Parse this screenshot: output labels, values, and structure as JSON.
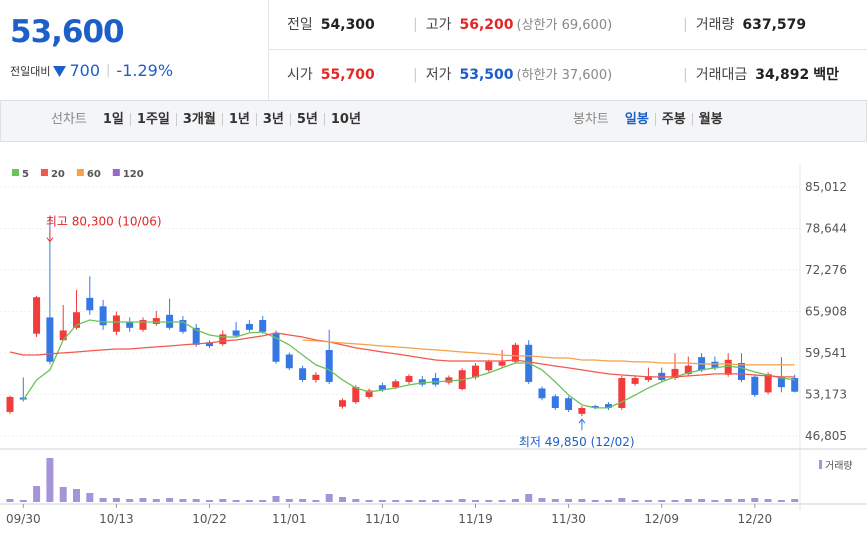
{
  "header": {
    "price": "53,600",
    "change_label": "전일대비",
    "change": "700",
    "change_rate": "-1.29%",
    "stats": [
      {
        "label": "전일",
        "value": "54,300"
      },
      {
        "label": "고가",
        "value": "56,200",
        "note": "(상한가 69,600)"
      },
      {
        "label": "거래량",
        "value": "637,579"
      },
      {
        "label": "시가",
        "value": "55,700"
      },
      {
        "label": "저가",
        "value": "53,500",
        "note": "(하한가 37,600)"
      },
      {
        "label": "거래대금",
        "value": "34,892",
        "unit": "백만"
      }
    ]
  },
  "tabs": {
    "line_label": "선차트",
    "periods": [
      "1일",
      "1주일",
      "3개월",
      "1년",
      "3년",
      "5년",
      "10년"
    ],
    "candle_label": "봉차트",
    "candle_periods": [
      "일봉",
      "주봉",
      "월봉"
    ]
  },
  "chart_data": {
    "type": "candlestick",
    "categories": [
      null,
      "09/30",
      null,
      null,
      null,
      null,
      null,
      null,
      "10/13",
      null,
      null,
      null,
      null,
      null,
      null,
      "10/22",
      null,
      null,
      null,
      null,
      null,
      "11/01",
      null,
      null,
      null,
      null,
      null,
      null,
      "11/10",
      null,
      null,
      null,
      null,
      null,
      null,
      "11/19",
      null,
      null,
      null,
      null,
      null,
      null,
      "11/30",
      null,
      null,
      null,
      null,
      null,
      null,
      "12/09",
      null,
      null,
      null,
      null,
      null,
      null,
      "12/20",
      null,
      null,
      null
    ],
    "open": [
      50500,
      52700,
      62500,
      65000,
      61500,
      63400,
      68000,
      66700,
      62800,
      64300,
      63100,
      64000,
      65400,
      64600,
      63400,
      61200,
      60900,
      63000,
      64000,
      64600,
      62600,
      59300,
      57200,
      55400,
      60000,
      51300,
      52000,
      52800,
      54600,
      54300,
      55100,
      55500,
      55700,
      55000,
      54000,
      55800,
      56900,
      57600,
      58200,
      60800,
      54100,
      52900,
      52600,
      50200,
      51400,
      51700,
      51100,
      54800,
      55400,
      56500,
      55700,
      56300,
      58900,
      58200,
      56200,
      58000,
      55900,
      53500,
      55900,
      55700
    ],
    "high": [
      53000,
      55800,
      68300,
      80300,
      66900,
      69200,
      71300,
      67700,
      65900,
      65000,
      65000,
      66000,
      67900,
      65200,
      64000,
      61500,
      63000,
      64300,
      64600,
      65200,
      63000,
      59600,
      57600,
      56600,
      63100,
      52600,
      54600,
      54100,
      55000,
      55500,
      56300,
      56000,
      56500,
      56100,
      57200,
      58000,
      58500,
      60000,
      61100,
      61500,
      54400,
      53200,
      52900,
      51400,
      51600,
      52000,
      56000,
      56100,
      57300,
      57300,
      59500,
      59000,
      59500,
      59000,
      59500,
      59500,
      56200,
      56600,
      58900,
      56200
    ],
    "low": [
      50200,
      52100,
      62000,
      57800,
      61500,
      63100,
      65400,
      63100,
      62300,
      62800,
      62800,
      63700,
      63100,
      62500,
      60500,
      60300,
      60600,
      61900,
      62800,
      62500,
      57900,
      56900,
      55100,
      55000,
      54800,
      51000,
      51700,
      52500,
      53600,
      54000,
      54800,
      54400,
      54400,
      54700,
      53800,
      55500,
      56600,
      57300,
      57900,
      54800,
      52300,
      50800,
      50500,
      49850,
      50900,
      50800,
      50800,
      54500,
      55100,
      55100,
      55400,
      56000,
      56600,
      56900,
      55900,
      55100,
      52800,
      53200,
      53500,
      53500
    ],
    "close": [
      52800,
      52400,
      68100,
      58200,
      63000,
      65800,
      66100,
      63800,
      65300,
      63400,
      64600,
      64900,
      63400,
      62800,
      60800,
      60600,
      62400,
      62200,
      63100,
      62800,
      58200,
      57200,
      55400,
      56200,
      55100,
      52300,
      54300,
      53800,
      53900,
      55200,
      56000,
      54700,
      54700,
      55800,
      56900,
      57600,
      58200,
      58200,
      60800,
      55100,
      52600,
      51100,
      50800,
      51100,
      51100,
      51100,
      55700,
      55700,
      56000,
      55400,
      57100,
      57600,
      56900,
      57200,
      58500,
      55400,
      53100,
      56300,
      54300,
      53600
    ],
    "up_color": "#f23b3b",
    "down_color": "#3578e5",
    "series": [
      {
        "name": "5",
        "color": "#6cc25a",
        "values": [
          null,
          52340,
          55410,
          56940,
          61540,
          63840,
          64610,
          64300,
          64300,
          64300,
          64300,
          64300,
          64300,
          64300,
          63080,
          62310,
          62000,
          62000,
          62620,
          62770,
          61850,
          60780,
          59240,
          57710,
          56940,
          55410,
          54180,
          53560,
          53870,
          54180,
          54640,
          54950,
          55100,
          55250,
          55410,
          55870,
          56480,
          57250,
          58010,
          58010,
          56940,
          55100,
          53100,
          51570,
          51110,
          51110,
          52030,
          53100,
          54180,
          55100,
          55870,
          56480,
          56940,
          57250,
          57550,
          57250,
          56630,
          56170,
          55710,
          55410
        ]
      },
      {
        "name": "20",
        "color": "#f2584e",
        "values": [
          59700,
          59240,
          59240,
          59400,
          59550,
          59700,
          59860,
          60010,
          60160,
          60160,
          60320,
          60470,
          60620,
          60780,
          60930,
          61080,
          61390,
          61540,
          61850,
          62160,
          62620,
          62310,
          62000,
          61540,
          61240,
          60780,
          60320,
          60010,
          59700,
          59400,
          59090,
          58780,
          58470,
          58320,
          58320,
          58320,
          58320,
          58320,
          58470,
          58170,
          57860,
          57550,
          57250,
          56940,
          56630,
          56330,
          56170,
          56020,
          55870,
          55870,
          55870,
          56020,
          56170,
          56330,
          56330,
          56330,
          56170,
          56020,
          55870,
          55870
        ]
      },
      {
        "name": "60",
        "color": "#f5a145",
        "values": [
          null,
          null,
          null,
          null,
          null,
          null,
          null,
          null,
          null,
          null,
          null,
          null,
          null,
          null,
          null,
          null,
          null,
          null,
          null,
          null,
          null,
          null,
          61540,
          61390,
          61240,
          61080,
          60930,
          60780,
          60620,
          60470,
          60320,
          60160,
          60010,
          59860,
          59700,
          59550,
          59400,
          59240,
          59090,
          59090,
          58930,
          58780,
          58780,
          58470,
          58470,
          58320,
          58320,
          58170,
          58170,
          58010,
          58010,
          58010,
          57860,
          57860,
          57860,
          57710,
          57710,
          57710,
          57710,
          57710
        ]
      },
      {
        "name": "120",
        "color": "#9966cc",
        "values": [
          null,
          null,
          null,
          null,
          null,
          null,
          null,
          null,
          null,
          null,
          null,
          null,
          null,
          null,
          null,
          null,
          null,
          null,
          null,
          null,
          null,
          null,
          null,
          null,
          null,
          null,
          null,
          null,
          null,
          null,
          null,
          null,
          null,
          null,
          null,
          null,
          null,
          null,
          null,
          null,
          null,
          null,
          null,
          null,
          null,
          null,
          null,
          null,
          null,
          null,
          null,
          null,
          null,
          null,
          null,
          null,
          null,
          null,
          null,
          null
        ]
      }
    ],
    "volume": {
      "name": "거래량",
      "color": "#a595d8",
      "values": [
        636000,
        424000,
        3392000,
        9328000,
        3180000,
        2756000,
        1908000,
        848000,
        848000,
        636000,
        848000,
        636000,
        848000,
        636000,
        636000,
        424000,
        636000,
        424000,
        424000,
        424000,
        1272000,
        636000,
        636000,
        424000,
        1696000,
        1060000,
        636000,
        424000,
        424000,
        424000,
        424000,
        424000,
        424000,
        424000,
        636000,
        424000,
        424000,
        424000,
        636000,
        1696000,
        848000,
        636000,
        636000,
        636000,
        424000,
        424000,
        848000,
        424000,
        424000,
        424000,
        424000,
        636000,
        636000,
        424000,
        636000,
        636000,
        848000,
        636000,
        424000,
        637579
      ]
    },
    "ylim": [
      46805,
      85012
    ],
    "yticks": [
      {
        "value": 85012,
        "label": "85,012"
      },
      {
        "value": 78644,
        "label": "78,644"
      },
      {
        "value": 72276,
        "label": "72,276"
      },
      {
        "value": 65908,
        "label": "65,908"
      },
      {
        "value": 59541,
        "label": "59,541"
      },
      {
        "value": 53173,
        "label": "53,173"
      },
      {
        "value": 46805,
        "label": "46,805"
      }
    ],
    "grid": true,
    "annotations": [
      {
        "text": "최고 80,300 (10/06)",
        "value": 80300
      },
      {
        "text": "최저 49,850 (12/02)",
        "value": 49850
      }
    ]
  }
}
